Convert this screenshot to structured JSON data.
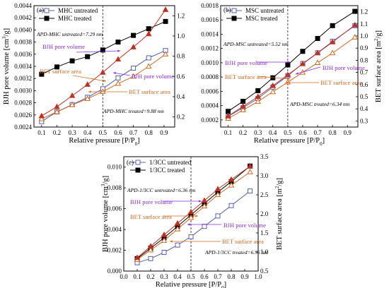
{
  "chart_data": [
    {
      "type": "line",
      "panel_label": "(a)",
      "xlabel": "Relative pressure [P/P",
      "xlabel_sub": "0",
      "xlabel_end": "]",
      "ylabel_left": "BJH pore volume [cm",
      "ylabel_left_sup": "3",
      "ylabel_left_end": "/g]",
      "ylabel_right": "",
      "xlim": [
        0.05,
        0.97
      ],
      "ylim_left": [
        0.0024,
        0.0044
      ],
      "ylim_right": [
        0.1,
        1.3
      ],
      "x_ticks": [
        "0.1",
        "0.2",
        "0.3",
        "0.4",
        "0.5",
        "0.6",
        "0.7",
        "0.8",
        "0.9"
      ],
      "y_left_ticks": [
        "0.0024",
        "0.0026",
        "0.0028",
        "0.0030",
        "0.0032",
        "0.0034",
        "0.0036",
        "0.0038",
        "0.0040",
        "0.0042",
        "0.0044"
      ],
      "y_right_ticks": [
        "0.2",
        "0.4",
        "0.6",
        "0.8",
        "1.0",
        "1.2"
      ],
      "grid": false,
      "legend_position": "top-left",
      "vline_x": 0.5,
      "series": [
        {
          "name": "MHC untreated",
          "marker": "open-square",
          "color": "#5560b0",
          "axis": "left",
          "x": [
            0.1,
            0.2,
            0.3,
            0.4,
            0.5,
            0.6,
            0.7,
            0.8,
            0.91
          ],
          "y": [
            0.00249,
            0.00265,
            0.00277,
            0.00289,
            0.00303,
            0.00321,
            0.00337,
            0.00354,
            0.00366
          ]
        },
        {
          "name": "MHC treated",
          "marker": "filled-square",
          "color": "#000000",
          "axis": "left",
          "x": [
            0.1,
            0.2,
            0.3,
            0.4,
            0.5,
            0.6,
            0.7,
            0.8,
            0.91
          ],
          "y": [
            0.00327,
            0.00339,
            0.00349,
            0.00356,
            0.00367,
            0.0038,
            0.00391,
            0.00402,
            0.00414
          ]
        },
        {
          "name": "",
          "marker": "open-triangle",
          "color": "#d2691e",
          "axis": "right",
          "x": [
            0.1,
            0.2,
            0.3,
            0.4,
            0.5,
            0.6,
            0.7,
            0.8,
            0.91
          ],
          "y": [
            0.18,
            0.25,
            0.32,
            0.38,
            0.45,
            0.53,
            0.6,
            0.7,
            0.82
          ]
        },
        {
          "name": "",
          "marker": "filled-triangle",
          "color": "#c03020",
          "axis": "right",
          "x": [
            0.1,
            0.2,
            0.3,
            0.4,
            0.5,
            0.6,
            0.7,
            0.8,
            0.91
          ],
          "y": [
            0.21,
            0.3,
            0.41,
            0.52,
            0.64,
            0.77,
            0.89,
            1.02,
            1.26
          ]
        }
      ],
      "annotations": [
        {
          "text": "APD-MHC untreated=7.29 nm",
          "style": "italic"
        },
        {
          "text": "APD-MHC treated=9.88 nm",
          "style": "italic"
        }
      ],
      "arrows": [
        {
          "text": "BJH pore volume",
          "color": "#8a2be2"
        },
        {
          "text": "BET surface area",
          "color": "#d2691e"
        },
        {
          "text": "BJH pore volume",
          "color": "#8a2be2"
        },
        {
          "text": "BET surface area",
          "color": "#d2691e"
        }
      ]
    },
    {
      "type": "line",
      "panel_label": "(b)",
      "xlabel": "Relative pressure [P/P",
      "xlabel_sub": "0",
      "xlabel_end": "]",
      "ylabel_left": "",
      "ylabel_right": "BET surface area [m",
      "ylabel_right_sup": "2",
      "ylabel_right_end": "/g]",
      "xlim": [
        0.05,
        0.97
      ],
      "ylim_left": [
        0.0001,
        0.0018
      ],
      "ylim_right": [
        0.25,
        1.25
      ],
      "x_ticks": [
        "0.1",
        "0.2",
        "0.3",
        "0.4",
        "0.5",
        "0.6",
        "0.7",
        "0.8",
        "0.9"
      ],
      "y_left_ticks": [
        "0.0002",
        "0.0004",
        "0.0006",
        "0.0008",
        "0.0010",
        "0.0012",
        "0.0014",
        "0.0016",
        "0.0018"
      ],
      "y_right_ticks": [
        "0.3",
        "0.4",
        "0.5",
        "0.6",
        "0.7",
        "0.8",
        "0.9",
        "1.0",
        "1.1",
        "1.2"
      ],
      "grid": false,
      "legend_position": "top-left",
      "vline_x": 0.5,
      "series": [
        {
          "name": "MSC untreated",
          "marker": "open-square",
          "color": "#5560b0",
          "axis": "left",
          "x": [
            0.1,
            0.2,
            0.3,
            0.4,
            0.5,
            0.6,
            0.7,
            0.8,
            0.95
          ],
          "y": [
            0.00025,
            0.00037,
            0.0005,
            0.00066,
            0.00082,
            0.00099,
            0.00114,
            0.0013,
            0.00152
          ]
        },
        {
          "name": "MSC treated",
          "marker": "filled-square",
          "color": "#000000",
          "axis": "left",
          "x": [
            0.1,
            0.2,
            0.3,
            0.4,
            0.5,
            0.6,
            0.7,
            0.8,
            0.95
          ],
          "y": [
            0.00032,
            0.00046,
            0.00061,
            0.00079,
            0.00097,
            0.00116,
            0.00134,
            0.00152,
            0.00172
          ]
        },
        {
          "name": "",
          "marker": "open-triangle",
          "color": "#d2691e",
          "axis": "right",
          "x": [
            0.1,
            0.2,
            0.3,
            0.4,
            0.5,
            0.6,
            0.7,
            0.8,
            0.95
          ],
          "y": [
            0.32,
            0.39,
            0.46,
            0.54,
            0.62,
            0.7,
            0.78,
            0.86,
            0.99
          ]
        },
        {
          "name": "",
          "marker": "filled-triangle",
          "color": "#c03020",
          "axis": "right",
          "x": [
            0.1,
            0.2,
            0.3,
            0.4,
            0.5,
            0.6,
            0.7,
            0.8,
            0.95
          ],
          "y": [
            0.34,
            0.42,
            0.5,
            0.59,
            0.68,
            0.77,
            0.86,
            0.95,
            1.09
          ]
        }
      ],
      "annotations": [
        {
          "text": "APD-MSC untreated=5.52 nm",
          "style": "italic"
        },
        {
          "text": "APD-MSC treated=6.34 nm",
          "style": "italic"
        }
      ],
      "arrows": [
        {
          "text": "BJH pore volume",
          "color": "#8a2be2"
        },
        {
          "text": "BET surface area",
          "color": "#d2691e"
        },
        {
          "text": "BJH pore volume",
          "color": "#8a2be2"
        },
        {
          "text": "BET surface area",
          "color": "#d2691e"
        }
      ]
    },
    {
      "type": "line",
      "panel_label": "(c)",
      "xlabel": "Relative pressure [P/P",
      "xlabel_sub": "0",
      "xlabel_end": "]",
      "ylabel_left": "BJH pore volume [cm",
      "ylabel_left_sup": "3",
      "ylabel_left_end": "/g]",
      "ylabel_right": "BET surface area [m",
      "ylabel_right_sup": "2",
      "ylabel_right_end": "/g]",
      "xlim": [
        0.0,
        1.0
      ],
      "ylim_left": [
        0.0,
        0.011
      ],
      "ylim_right": [
        0.5,
        3.5
      ],
      "x_ticks": [
        "0.0",
        "0.1",
        "0.2",
        "0.3",
        "0.4",
        "0.5",
        "0.6",
        "0.7",
        "0.8",
        "0.9",
        "1.0"
      ],
      "y_left_ticks": [
        "0.000",
        "0.002",
        "0.004",
        "0.006",
        "0.008",
        "0.010"
      ],
      "y_right_ticks": [
        "0.5",
        "1.0",
        "1.5",
        "2.0",
        "2.5",
        "3.0",
        "3.5"
      ],
      "grid": false,
      "legend_position": "top-left",
      "vline_x": 0.5,
      "series": [
        {
          "name": "1/3CC untreated",
          "marker": "open-square",
          "color": "#5560b0",
          "axis": "left",
          "x": [
            0.1,
            0.2,
            0.3,
            0.4,
            0.5,
            0.6,
            0.7,
            0.8,
            0.94
          ],
          "y": [
            0.0008,
            0.0012,
            0.0018,
            0.0025,
            0.0033,
            0.0043,
            0.0053,
            0.0063,
            0.0077
          ]
        },
        {
          "name": "1/3CC treated",
          "marker": "filled-square",
          "color": "#000000",
          "axis": "left",
          "x": [
            0.1,
            0.2,
            0.3,
            0.4,
            0.5,
            0.6,
            0.7,
            0.8,
            0.94
          ],
          "y": [
            0.0012,
            0.0022,
            0.0032,
            0.0043,
            0.0054,
            0.0065,
            0.0076,
            0.0086,
            0.0101
          ]
        },
        {
          "name": "",
          "marker": "open-triangle",
          "color": "#d2691e",
          "axis": "right",
          "x": [
            0.1,
            0.2,
            0.3,
            0.4,
            0.5,
            0.6,
            0.7,
            0.8,
            0.94
          ],
          "y": [
            0.8,
            1.05,
            1.3,
            1.6,
            1.9,
            2.2,
            2.5,
            2.75,
            3.1
          ]
        },
        {
          "name": "",
          "marker": "filled-triangle",
          "color": "#c03020",
          "axis": "right",
          "x": [
            0.1,
            0.2,
            0.3,
            0.4,
            0.5,
            0.6,
            0.7,
            0.8,
            0.94
          ],
          "y": [
            0.85,
            1.15,
            1.45,
            1.75,
            2.05,
            2.35,
            2.65,
            2.9,
            3.25
          ]
        }
      ],
      "annotations": [
        {
          "text": "APD-1/3CC untreated=6.36 nm",
          "style": "italic"
        },
        {
          "text": "APD-1/3CC treated=6.96 nm",
          "style": "italic"
        }
      ],
      "arrows": [
        {
          "text": "BJH pore volume",
          "color": "#8a2be2"
        },
        {
          "text": "BET surface area",
          "color": "#d2691e"
        },
        {
          "text": "BJH pore volume",
          "color": "#8a2be2"
        },
        {
          "text": "BET surface area",
          "color": "#d2691e"
        }
      ]
    }
  ]
}
